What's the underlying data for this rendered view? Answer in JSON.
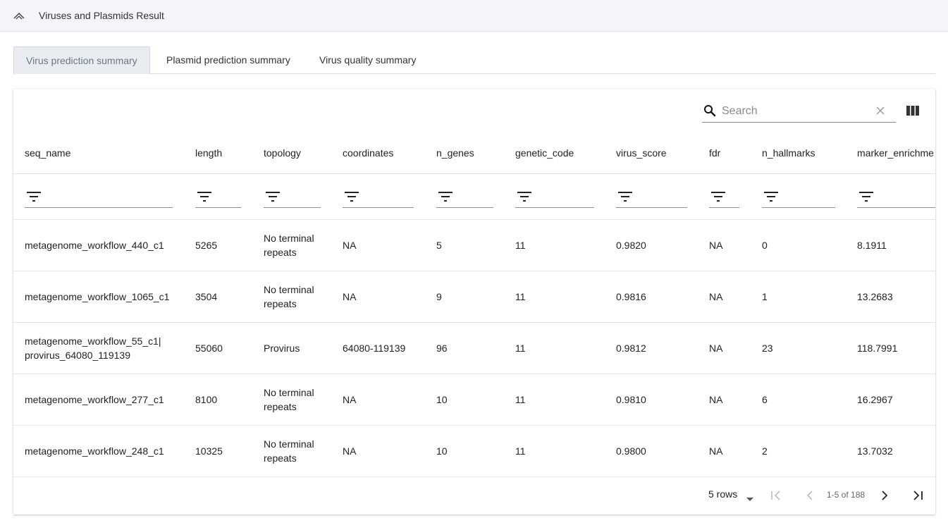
{
  "header": {
    "title": "Viruses and Plasmids Result"
  },
  "tabs": [
    {
      "label": "Virus prediction summary"
    },
    {
      "label": "Plasmid prediction summary"
    },
    {
      "label": "Virus quality summary"
    }
  ],
  "search": {
    "placeholder": "Search",
    "value": ""
  },
  "columns": [
    "seq_name",
    "length",
    "topology",
    "coordinates",
    "n_genes",
    "genetic_code",
    "virus_score",
    "fdr",
    "n_hallmarks",
    "marker_enrichme"
  ],
  "rows": [
    [
      "metagenome_workflow_440_c1",
      "5265",
      "No terminal repeats",
      "NA",
      "5",
      "11",
      "0.9820",
      "NA",
      "0",
      "8.1911"
    ],
    [
      "metagenome_workflow_1065_c1",
      "3504",
      "No terminal repeats",
      "NA",
      "9",
      "11",
      "0.9816",
      "NA",
      "1",
      "13.2683"
    ],
    [
      "metagenome_workflow_55_c1| provirus_64080_119139",
      "55060",
      "Provirus",
      "64080-119139",
      "96",
      "11",
      "0.9812",
      "NA",
      "23",
      "118.7991"
    ],
    [
      "metagenome_workflow_277_c1",
      "8100",
      "No terminal repeats",
      "NA",
      "10",
      "11",
      "0.9810",
      "NA",
      "6",
      "16.2967"
    ],
    [
      "metagenome_workflow_248_c1",
      "10325",
      "No terminal repeats",
      "NA",
      "10",
      "11",
      "0.9800",
      "NA",
      "2",
      "13.7032"
    ]
  ],
  "pagination": {
    "rows_label": "5 rows",
    "page_info": "1-5 of 188"
  },
  "icons": {
    "collapse": "chevron-up-icon",
    "search": "search-icon",
    "clear": "close-icon",
    "columns": "view-column-icon",
    "filter": "filter-icon",
    "first": "first-page-icon",
    "prev": "chevron-left-icon",
    "next": "chevron-right-icon",
    "last": "last-page-icon"
  },
  "colors": {
    "topbar_bg": "#f3f5f8",
    "active_tab_bg": "#e9edf2",
    "border": "#e4e4e4"
  }
}
